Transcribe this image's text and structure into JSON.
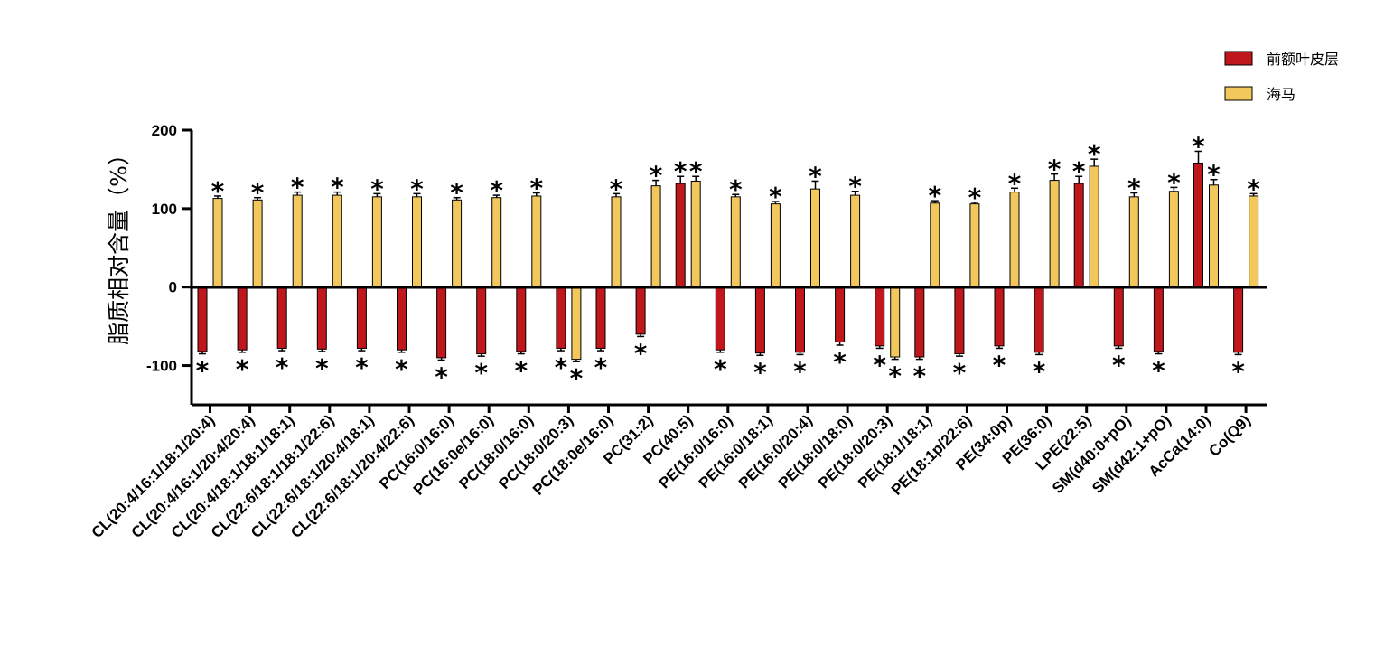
{
  "chart_data": {
    "type": "bar",
    "ylabel": "脂质相对含量（%）",
    "ylim": [
      -150,
      200
    ],
    "yticks": [
      -100,
      0,
      100,
      200
    ],
    "legend_position": "top-right",
    "colors": {
      "pfc": "#c0171c",
      "hippo": "#f2c85c"
    },
    "categories": [
      "CL(20:4/16:1/18:1/20:4)",
      "CL(20:4/16:1/20:4/20:4)",
      "CL(20:4/18:1/18:1/18:1)",
      "CL(22:6/18:1/18:1/22:6)",
      "CL(22:6/18:1/20:4/18:1)",
      "CL(22:6/18:1/20:4/22:6)",
      "PC(16:0/16:0)",
      "PC(16:0e/16:0)",
      "PC(18:0/16:0)",
      "PC(18:0/20:3)",
      "PC(18:0e/16:0)",
      "PC(31:2)",
      "PC(40:5)",
      "PE(16:0/16:0)",
      "PE(16:0/18:1)",
      "PE(16:0/20:4)",
      "PE(18:0/18:0)",
      "PE(18:0/20:3)",
      "PE(18:1/18:1)",
      "PE(18:1p/22:6)",
      "PE(34:0p)",
      "PE(36:0)",
      "LPE(22:5)",
      "SM(d40:0+pO)",
      "SM(d42:1+pO)",
      "AcCa(14:0)",
      "Co(Q9)"
    ],
    "series": [
      {
        "name": "前额叶皮层",
        "values": [
          -82,
          -80,
          -78,
          -79,
          -78,
          -80,
          -90,
          -85,
          -82,
          -78,
          -78,
          -60,
          132,
          -80,
          -84,
          -83,
          -70,
          -75,
          -89,
          -85,
          -75,
          -83,
          132,
          -75,
          -82,
          158,
          -83
        ],
        "errors": [
          3,
          3,
          3,
          3,
          3,
          3,
          3,
          3,
          3,
          3,
          3,
          3,
          9,
          3,
          3,
          3,
          4,
          3,
          3,
          3,
          3,
          3,
          9,
          3,
          3,
          15,
          3
        ],
        "significant": [
          true,
          true,
          true,
          true,
          true,
          true,
          true,
          true,
          true,
          true,
          true,
          true,
          true,
          true,
          true,
          true,
          true,
          true,
          true,
          true,
          true,
          true,
          true,
          true,
          true,
          true,
          true
        ]
      },
      {
        "name": "海马",
        "values": [
          113,
          111,
          117,
          117,
          115,
          115,
          111,
          114,
          116,
          -92,
          115,
          129,
          135,
          115,
          106,
          125,
          117,
          -89,
          107,
          106,
          121,
          136,
          154,
          115,
          122,
          130,
          116
        ],
        "errors": [
          3,
          3,
          4,
          4,
          4,
          4,
          3,
          3,
          4,
          3,
          4,
          7,
          6,
          3,
          3,
          10,
          5,
          3,
          3,
          2,
          5,
          8,
          9,
          5,
          5,
          7,
          3
        ],
        "significant": [
          true,
          true,
          true,
          true,
          true,
          true,
          true,
          true,
          true,
          true,
          true,
          true,
          true,
          true,
          true,
          true,
          true,
          true,
          true,
          true,
          true,
          true,
          true,
          true,
          true,
          true,
          true
        ]
      }
    ]
  }
}
